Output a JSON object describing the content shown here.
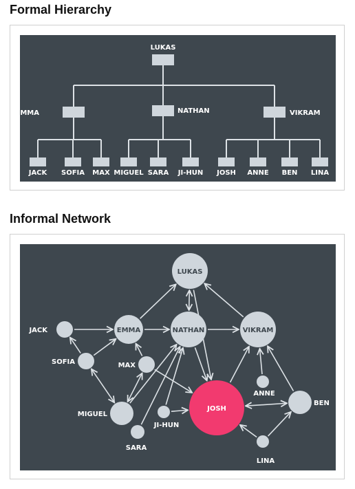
{
  "hierarchy": {
    "title": "Formal Hierarchy",
    "root": "LUKAS",
    "managers": [
      "EMMA",
      "NATHAN",
      "VIKRAM"
    ],
    "teams": [
      [
        "JACK",
        "SOFIA",
        "MAX"
      ],
      [
        "MIGUEL",
        "SARA",
        "JI-HUN"
      ],
      [
        "JOSH",
        "ANNE",
        "BEN",
        "LINA"
      ]
    ]
  },
  "network": {
    "title": "Informal Network",
    "highlight": "JOSH",
    "nodes": [
      "LUKAS",
      "EMMA",
      "NATHAN",
      "VIKRAM",
      "JACK",
      "SOFIA",
      "MAX",
      "MIGUEL",
      "SARA",
      "JI-HUN",
      "JOSH",
      "ANNE",
      "BEN",
      "LINA"
    ],
    "edges": [
      [
        "JACK",
        "EMMA",
        "one-way"
      ],
      [
        "EMMA",
        "NATHAN",
        "one-way"
      ],
      [
        "NATHAN",
        "VIKRAM",
        "one-way"
      ],
      [
        "EMMA",
        "LUKAS",
        "one-way"
      ],
      [
        "NATHAN",
        "LUKAS",
        "two-way"
      ],
      [
        "VIKRAM",
        "LUKAS",
        "one-way"
      ],
      [
        "SOFIA",
        "JACK",
        "one-way"
      ],
      [
        "SOFIA",
        "EMMA",
        "one-way"
      ],
      [
        "SOFIA",
        "MIGUEL",
        "two-way"
      ],
      [
        "MAX",
        "EMMA",
        "one-way"
      ],
      [
        "MAX",
        "JOSH",
        "one-way"
      ],
      [
        "MIGUEL",
        "MAX",
        "two-way"
      ],
      [
        "MIGUEL",
        "NATHAN",
        "one-way"
      ],
      [
        "SARA",
        "NATHAN",
        "one-way"
      ],
      [
        "JI-HUN",
        "NATHAN",
        "one-way"
      ],
      [
        "JI-HUN",
        "JOSH",
        "one-way"
      ],
      [
        "NATHAN",
        "JOSH",
        "one-way"
      ],
      [
        "LUKAS",
        "JOSH",
        "one-way"
      ],
      [
        "JOSH",
        "VIKRAM",
        "one-way"
      ],
      [
        "ANNE",
        "VIKRAM",
        "one-way"
      ],
      [
        "BEN",
        "VIKRAM",
        "one-way"
      ],
      [
        "BEN",
        "JOSH",
        "two-way"
      ],
      [
        "LINA",
        "JOSH",
        "one-way"
      ],
      [
        "LINA",
        "BEN",
        "one-way"
      ]
    ]
  },
  "colors": {
    "panel": "#3e474e",
    "node": "#cfd6dc",
    "line": "#dde2e6",
    "highlight": "#f23a6f"
  }
}
